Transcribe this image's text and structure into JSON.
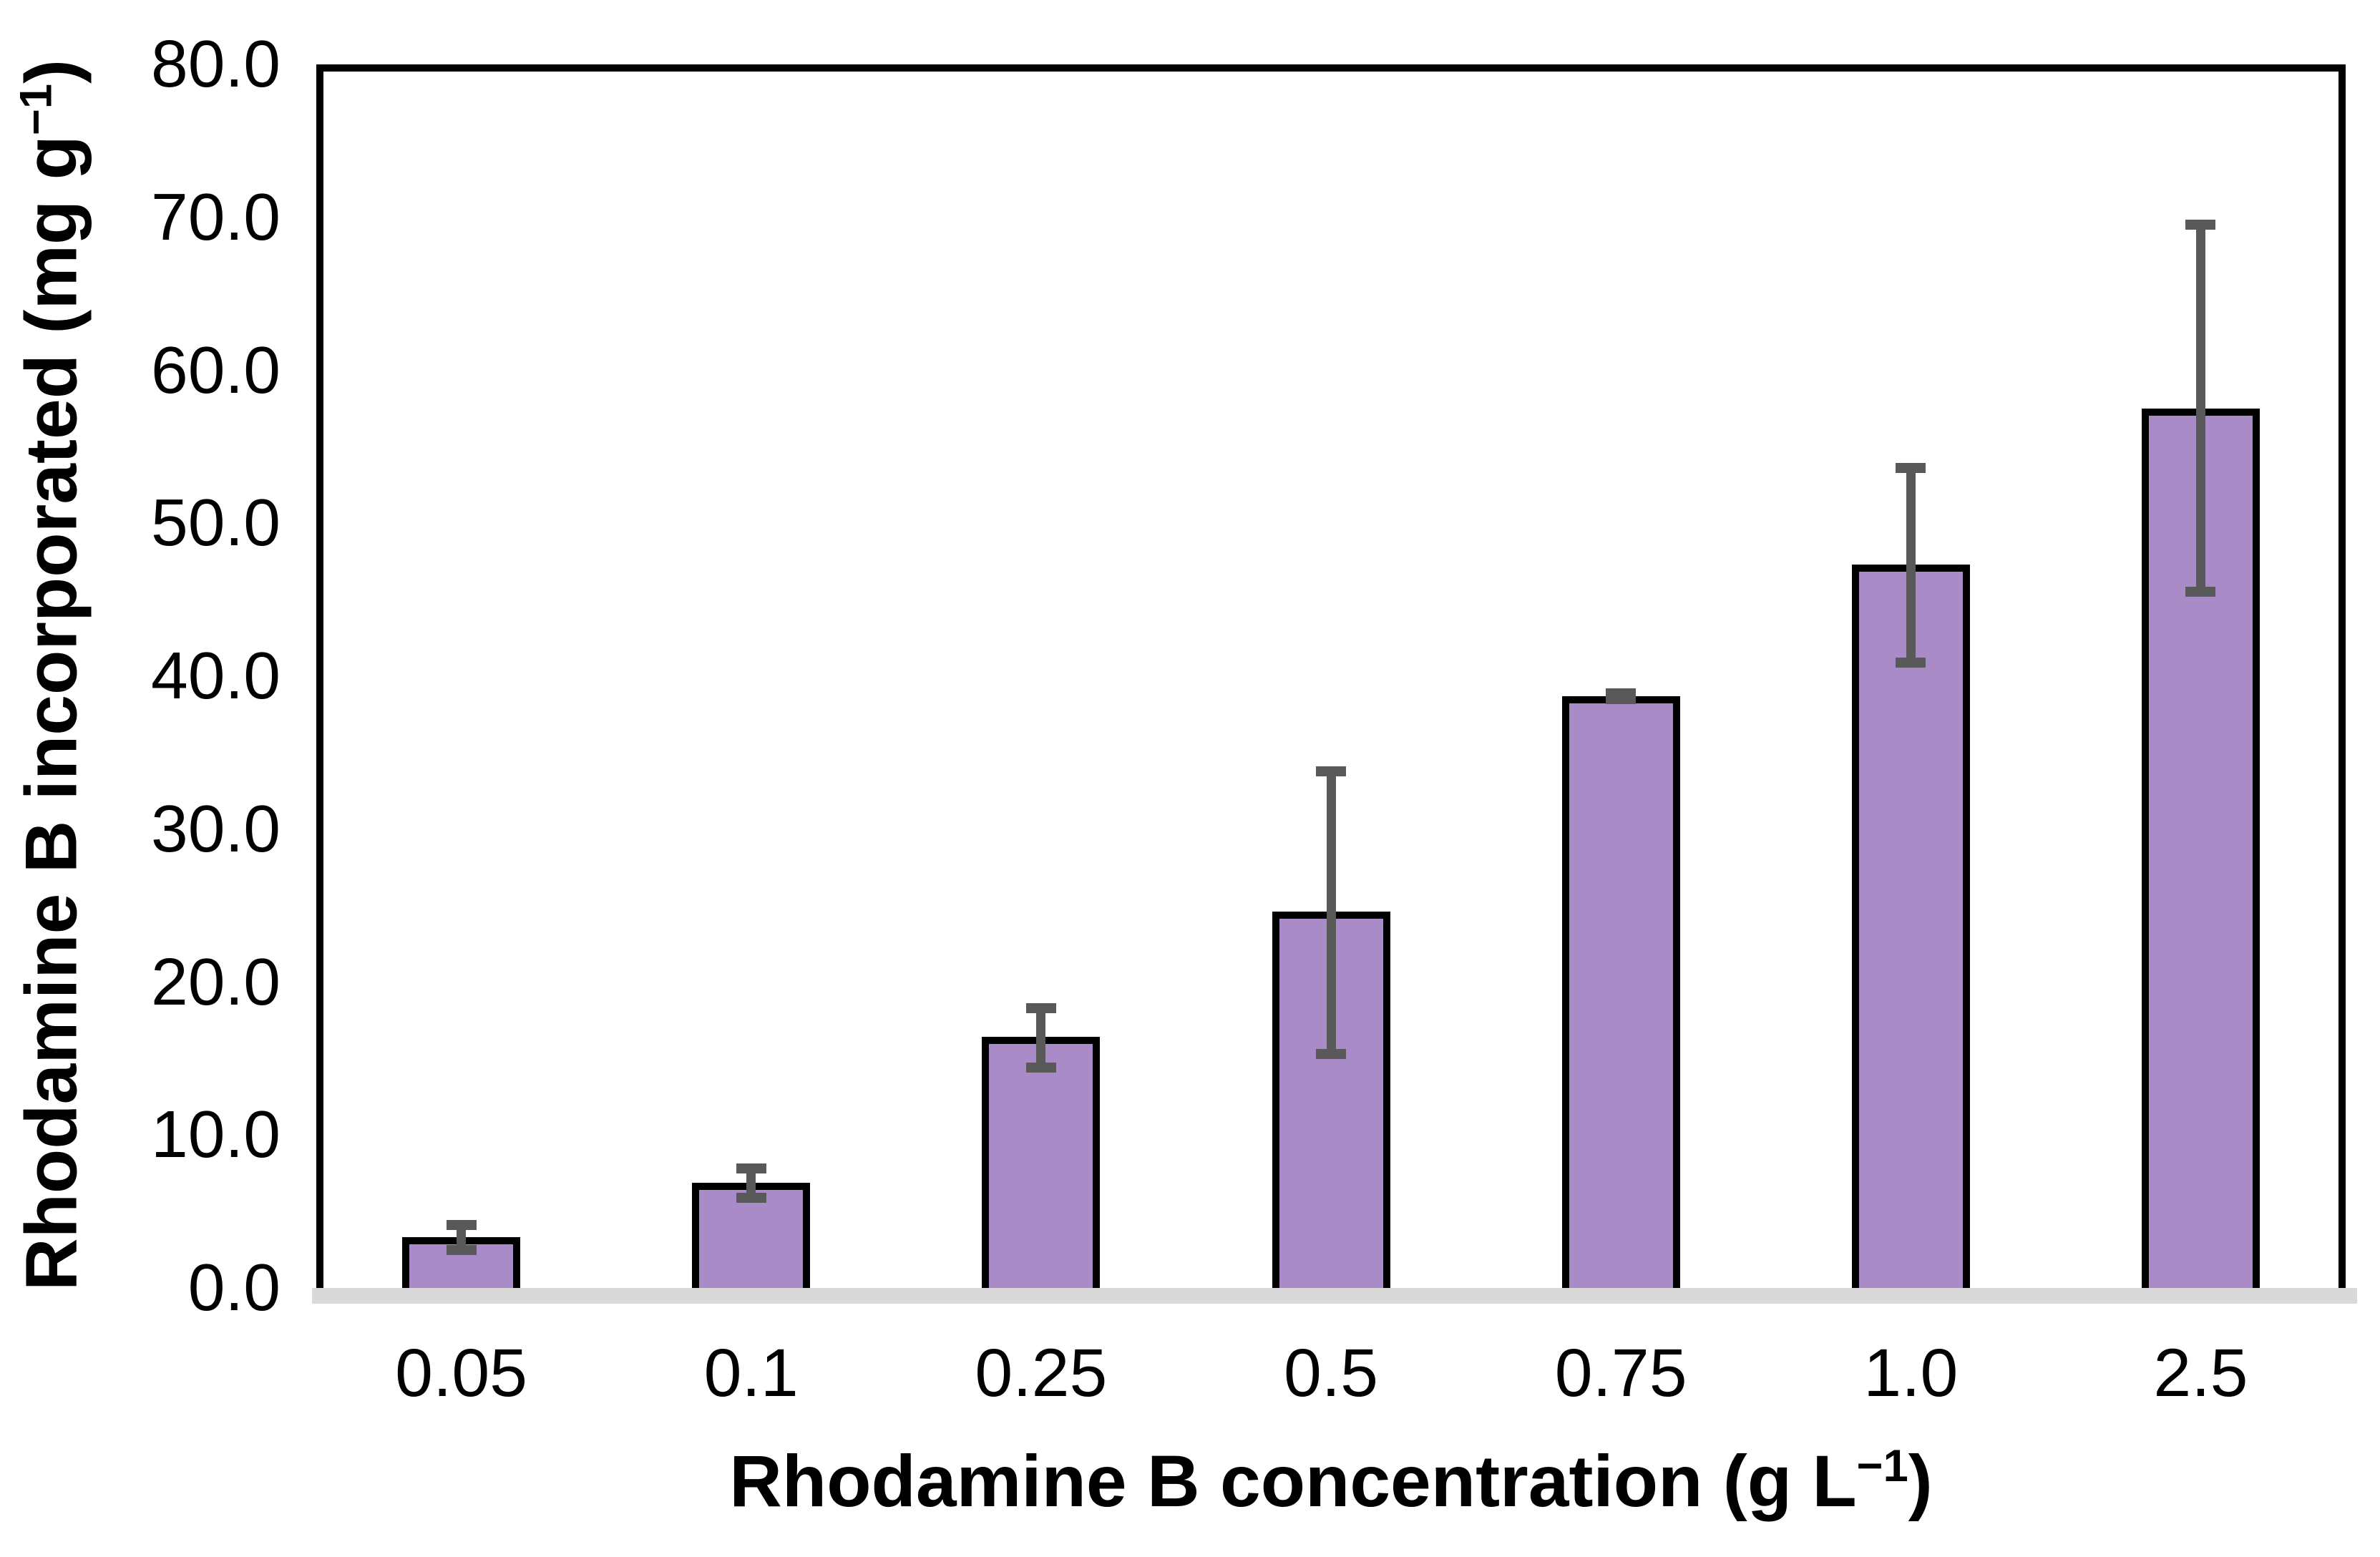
{
  "page": {
    "background": "#ffffff"
  },
  "chart_data": {
    "type": "bar",
    "title": "",
    "xlabel_prefix": "Rhodamine B concentration (g L",
    "xlabel_sup": "−1",
    "xlabel_suffix": ")",
    "ylabel_prefix": "Rhodamine B incorporated (mg g",
    "ylabel_sup": "−1",
    "ylabel_suffix": ")",
    "categories": [
      "0.05",
      "0.1",
      "0.25",
      "0.5",
      "0.75",
      "1.0",
      "2.5"
    ],
    "values": [
      3.3,
      6.9,
      16.4,
      24.6,
      38.7,
      47.3,
      57.5
    ],
    "error_up": [
      0.8,
      0.9,
      1.9,
      9.2,
      0.2,
      6.3,
      12.0
    ],
    "error_down": [
      0.8,
      1.0,
      2.0,
      9.3,
      0.2,
      6.4,
      12.0
    ],
    "ylim": [
      0,
      80
    ],
    "y_tick_step": 10,
    "y_tick_labels": [
      "0.0",
      "10.0",
      "20.0",
      "30.0",
      "40.0",
      "50.0",
      "60.0",
      "70.0",
      "80.0"
    ],
    "grid": "off",
    "legend": "none",
    "colors": {
      "bar_fill": "#A98BC8",
      "bar_border": "#000000",
      "error_bar": "#595959",
      "baseline_band": "#D9D9D9",
      "frame": "#000000",
      "text": "#000000"
    }
  }
}
